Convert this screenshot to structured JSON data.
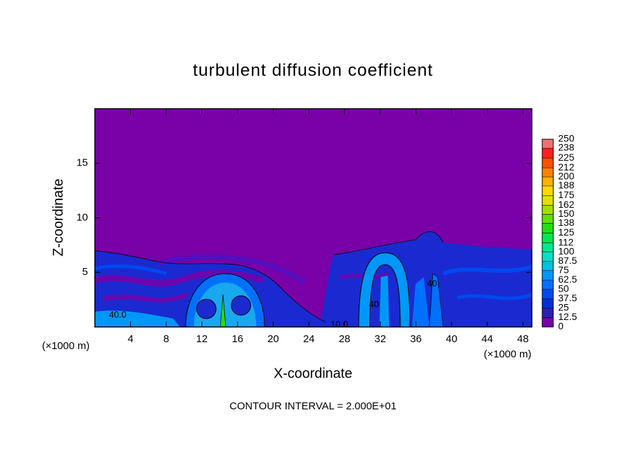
{
  "chart_data": {
    "type": "contour",
    "title": "turbulent diffusion coefficient",
    "x_label": "X-coordinate",
    "y_label": "Z-coordinate",
    "x_unit": "(×1000 m)",
    "y_unit": "(×1000 m)",
    "note": "CONTOUR INTERVAL = 2.000E+01",
    "xlim": [
      0,
      49
    ],
    "ylim": [
      0,
      20
    ],
    "xticks": [
      4,
      8,
      12,
      16,
      20,
      24,
      28,
      32,
      36,
      40,
      44,
      48
    ],
    "yticks": [
      5,
      10,
      15
    ],
    "colorbar": {
      "levels": [
        0,
        12.5,
        25,
        37.5,
        50,
        62.5,
        75,
        87.5,
        100,
        112,
        125,
        138,
        150,
        162,
        175,
        188,
        200,
        212,
        225,
        238,
        250
      ],
      "colors": [
        "#7a00a8",
        "#2a20b8",
        "#0030d8",
        "#0048f0",
        "#0070ff",
        "#0098f8",
        "#00c0e8",
        "#00e0c8",
        "#00e890",
        "#00e850",
        "#20e010",
        "#60e000",
        "#a0e000",
        "#e0e000",
        "#ffd800",
        "#ffb000",
        "#ff8000",
        "#ff5000",
        "#ff2020",
        "#f07070"
      ]
    },
    "contour_labels": [
      "40.0",
      "10.0",
      "40",
      "40"
    ]
  }
}
